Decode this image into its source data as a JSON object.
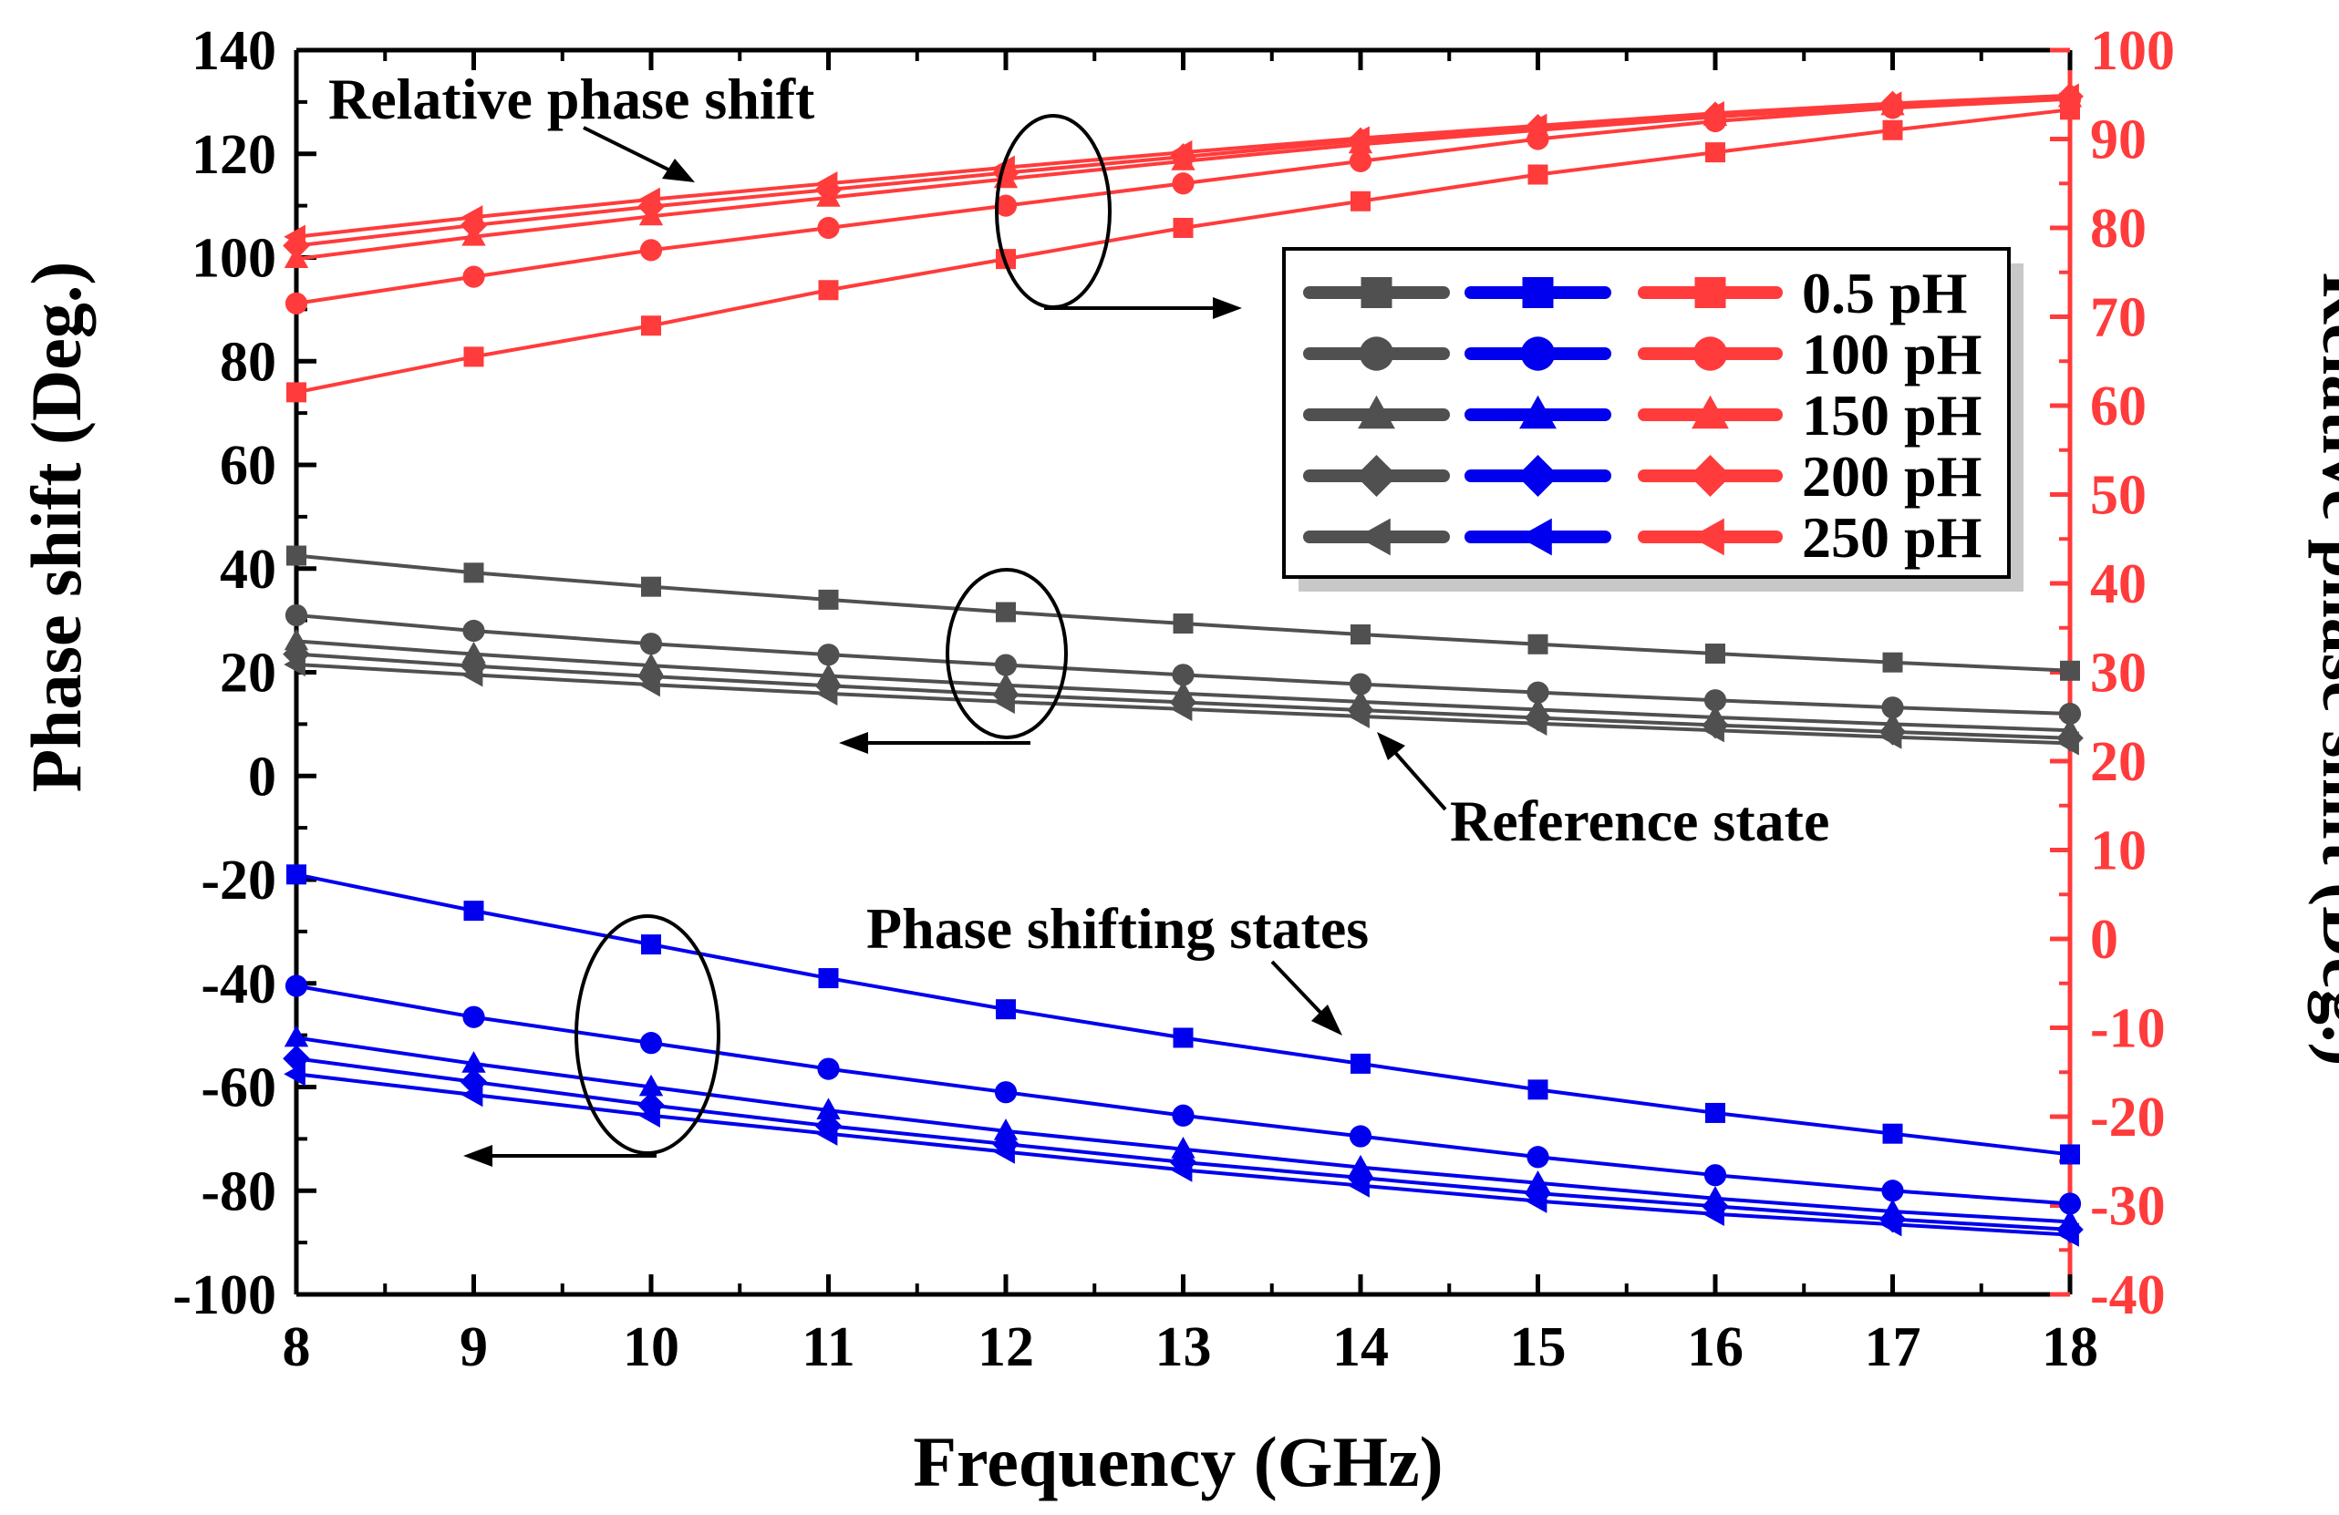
{
  "chart_data": {
    "type": "line",
    "xlabel": "Frequency (GHz)",
    "ylabel_left": "Phase shift (Deg.)",
    "ylabel_right": "Relative phase shift (Deg.)",
    "x": [
      8,
      9,
      10,
      11,
      12,
      13,
      14,
      15,
      16,
      17,
      18
    ],
    "xlim": [
      8,
      18
    ],
    "ylim_left": [
      -100,
      140
    ],
    "ylim_right": [
      -40,
      100
    ],
    "xticks": [
      "8",
      "9",
      "10",
      "11",
      "12",
      "13",
      "14",
      "15",
      "16",
      "17",
      "18"
    ],
    "yticks_left": [
      "-100",
      "-80",
      "-60",
      "-40",
      "-20",
      "0",
      "20",
      "40",
      "60",
      "80",
      "100",
      "120",
      "140"
    ],
    "yticks_right": [
      "-40",
      "-30",
      "-20",
      "-10",
      "0",
      "10",
      "20",
      "30",
      "40",
      "50",
      "60",
      "70",
      "80",
      "90",
      "100"
    ],
    "colors": {
      "reference": "#505050",
      "shifting": "#0000ee",
      "relative": "#ff3b3b",
      "right_axis": "#ff3b3b"
    },
    "markers": [
      "square",
      "circle",
      "triangle-up",
      "diamond",
      "triangle-left"
    ],
    "legend": {
      "position": "upper-right",
      "labels": [
        "0.5 pH",
        "100 pH",
        "150 pH",
        "200 pH",
        "250 pH"
      ]
    },
    "series": [
      {
        "name": "0.5 pH",
        "group": "reference",
        "axis": "left",
        "values": [
          42.5,
          39.2,
          36.5,
          34.0,
          31.6,
          29.4,
          27.3,
          25.4,
          23.6,
          21.9,
          20.3
        ]
      },
      {
        "name": "100 pH",
        "group": "reference",
        "axis": "left",
        "values": [
          31.0,
          28.0,
          25.5,
          23.4,
          21.4,
          19.5,
          17.7,
          16.1,
          14.6,
          13.2,
          12.0
        ]
      },
      {
        "name": "150 pH",
        "group": "reference",
        "axis": "left",
        "values": [
          26.0,
          23.5,
          21.3,
          19.3,
          17.5,
          15.9,
          14.3,
          12.8,
          11.3,
          10.0,
          8.8
        ]
      },
      {
        "name": "200 pH",
        "group": "reference",
        "axis": "left",
        "values": [
          23.5,
          21.2,
          19.2,
          17.4,
          15.7,
          14.2,
          12.7,
          11.2,
          9.8,
          8.5,
          7.3
        ]
      },
      {
        "name": "250 pH",
        "group": "reference",
        "axis": "left",
        "values": [
          21.5,
          19.5,
          17.6,
          15.9,
          14.3,
          12.9,
          11.5,
          10.1,
          8.8,
          7.5,
          6.3
        ]
      },
      {
        "name": "0.5 pH",
        "group": "shifting",
        "axis": "left",
        "values": [
          -19.0,
          -26.0,
          -32.5,
          -39.0,
          -45.0,
          -50.5,
          -55.5,
          -60.5,
          -65.0,
          -69.0,
          -73.0
        ]
      },
      {
        "name": "100 pH",
        "group": "shifting",
        "axis": "left",
        "values": [
          -40.5,
          -46.5,
          -51.5,
          -56.5,
          -61.0,
          -65.5,
          -69.5,
          -73.5,
          -77.0,
          -80.0,
          -82.5
        ]
      },
      {
        "name": "150 pH",
        "group": "shifting",
        "axis": "left",
        "values": [
          -50.5,
          -55.5,
          -60.0,
          -64.5,
          -68.5,
          -72.0,
          -75.5,
          -78.5,
          -81.5,
          -84.0,
          -86.0
        ]
      },
      {
        "name": "200 pH",
        "group": "shifting",
        "axis": "left",
        "values": [
          -54.5,
          -59.0,
          -63.5,
          -67.5,
          -71.0,
          -74.5,
          -77.5,
          -80.5,
          -83.0,
          -85.5,
          -87.5
        ]
      },
      {
        "name": "250 pH",
        "group": "shifting",
        "axis": "left",
        "values": [
          -57.5,
          -61.5,
          -65.5,
          -69.0,
          -72.5,
          -76.0,
          -79.0,
          -82.0,
          -84.5,
          -86.5,
          -88.5
        ]
      },
      {
        "name": "0.5 pH",
        "group": "relative",
        "axis": "right",
        "values": [
          61.5,
          65.5,
          69.0,
          73.0,
          76.5,
          80.0,
          83.0,
          86.0,
          88.5,
          91.0,
          93.3
        ]
      },
      {
        "name": "100 pH",
        "group": "relative",
        "axis": "right",
        "values": [
          71.5,
          74.5,
          77.5,
          80.0,
          82.5,
          85.0,
          87.5,
          90.0,
          92.0,
          93.5,
          94.5
        ]
      },
      {
        "name": "150 pH",
        "group": "relative",
        "axis": "right",
        "values": [
          76.5,
          79.0,
          81.3,
          83.4,
          85.5,
          87.5,
          89.4,
          91.0,
          92.5,
          93.7,
          94.6
        ]
      },
      {
        "name": "200 pH",
        "group": "relative",
        "axis": "right",
        "values": [
          78.0,
          80.3,
          82.4,
          84.3,
          86.2,
          88.0,
          89.8,
          91.3,
          92.7,
          93.9,
          94.8
        ]
      },
      {
        "name": "250 pH",
        "group": "relative",
        "axis": "right",
        "values": [
          79.0,
          81.2,
          83.2,
          85.0,
          86.8,
          88.5,
          90.1,
          91.5,
          92.9,
          94.0,
          94.9
        ]
      }
    ],
    "annotations": {
      "relative": "Relative phase shift",
      "reference": "Reference state",
      "shifting": "Phase shifting states"
    }
  }
}
